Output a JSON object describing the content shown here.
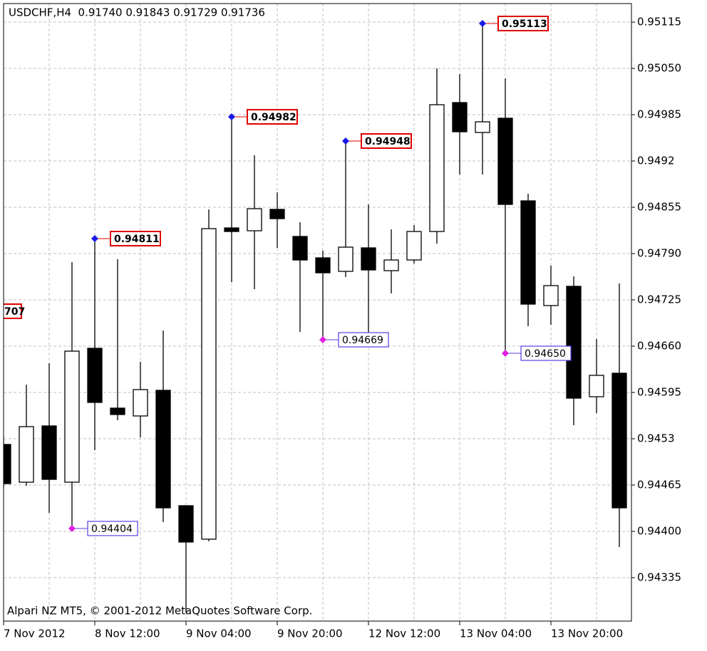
{
  "chart_data": {
    "type": "candlestick",
    "title": "USDCHF,H4  0.91740 0.91843 0.91729 0.91736",
    "watermark": "Alpari NZ MT5, © 2001-2012 MetaQuotes Software Corp.",
    "categories": [
      "7 Nov 2012",
      null,
      null,
      null,
      "8 Nov 12:00",
      null,
      null,
      null,
      "9 Nov 04:00",
      null,
      null,
      null,
      "9 Nov 20:00",
      null,
      null,
      null,
      "12 Nov 12:00",
      null,
      null,
      null,
      "13 Nov 04:00",
      null,
      null,
      null,
      "13 Nov 20:00",
      null,
      null,
      null
    ],
    "open": [
      0.94522,
      0.94469,
      0.94548,
      0.94469,
      0.94657,
      0.94573,
      0.94562,
      0.94598,
      0.94436,
      0.94389,
      0.94826,
      0.94822,
      0.94852,
      0.94814,
      0.94784,
      0.94765,
      0.94798,
      0.94766,
      0.94781,
      0.94821,
      0.95002,
      0.9496,
      0.9498,
      0.94864,
      0.94717,
      0.94744,
      0.94589,
      0.94622
    ],
    "high": [
      0.94534,
      0.94606,
      0.94636,
      0.94778,
      0.94811,
      0.94782,
      0.94638,
      0.94682,
      0.94436,
      0.94852,
      0.94982,
      0.94928,
      0.94876,
      0.94834,
      0.94794,
      0.94948,
      0.94859,
      0.94824,
      0.9483,
      0.9505,
      0.95042,
      0.95113,
      0.95036,
      0.94874,
      0.94773,
      0.94758,
      0.9467,
      0.94748
    ],
    "low": [
      0.94461,
      0.94464,
      0.94426,
      0.94404,
      0.94514,
      0.94556,
      0.94532,
      0.94413,
      0.94286,
      0.94386,
      0.9475,
      0.9474,
      0.94798,
      0.9468,
      0.94669,
      0.94757,
      0.94676,
      0.94734,
      0.94776,
      0.94804,
      0.94901,
      0.94901,
      0.9465,
      0.94688,
      0.9469,
      0.94549,
      0.94566,
      0.94378
    ],
    "close": [
      0.94467,
      0.94547,
      0.94473,
      0.94653,
      0.94581,
      0.94564,
      0.94599,
      0.94433,
      0.94385,
      0.94825,
      0.94821,
      0.94853,
      0.94839,
      0.94781,
      0.94763,
      0.94799,
      0.94767,
      0.94781,
      0.94821,
      0.94999,
      0.94961,
      0.94975,
      0.94859,
      0.94719,
      0.94745,
      0.94587,
      0.94619,
      0.94433
    ],
    "high_labels": [
      null,
      null,
      null,
      null,
      "0.94811",
      null,
      null,
      null,
      null,
      null,
      "0.94982",
      null,
      null,
      null,
      null,
      "0.94948",
      null,
      null,
      null,
      null,
      null,
      "0.95113",
      null,
      null,
      null,
      null,
      null,
      null
    ],
    "low_labels": [
      null,
      null,
      null,
      "0.94404",
      null,
      null,
      null,
      null,
      null,
      null,
      null,
      null,
      null,
      null,
      "0.94669",
      null,
      null,
      null,
      null,
      null,
      null,
      null,
      "0.94650",
      null,
      null,
      null,
      null,
      null
    ],
    "clipped_label": "707",
    "ylim": [
      0.94274,
      0.95141
    ],
    "yticks": [
      0.95115,
      {
        "value": 0.9505,
        "label": "0.95050"
      },
      0.94985,
      0.9492,
      0.94855,
      {
        "value": 0.9479,
        "label": "0.94790"
      },
      0.94725,
      {
        "value": 0.9466,
        "label": "0.94660"
      },
      0.94595,
      0.9453,
      0.94465,
      {
        "value": 0.944,
        "label": "0.94400"
      },
      0.94335
    ],
    "grid": true,
    "up_color": "#ffffff",
    "down_color": "#000000",
    "wick_color": "#000000",
    "high_label_color": "#e00000",
    "high_marker_color": "#1a1ae6",
    "low_label_color": "#5a3ce6",
    "low_marker_color": "#e020e0"
  }
}
